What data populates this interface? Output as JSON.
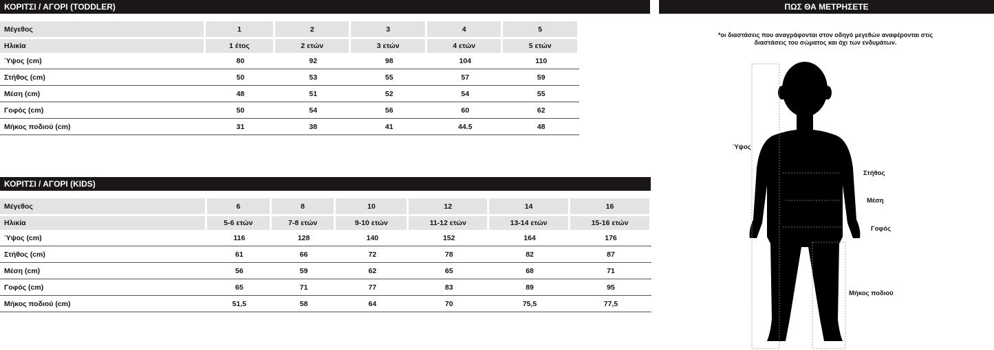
{
  "toddler": {
    "title": "ΚΟΡΙΤΣΙ / ΑΓΟΡΙ (TODDLER)",
    "rows": [
      {
        "label": "Μέγεθος",
        "values": [
          "1",
          "2",
          "3",
          "4",
          "5"
        ]
      },
      {
        "label": "Ηλικία",
        "values": [
          "1 έτος",
          "2 ετών",
          "3 ετών",
          "4 ετών",
          "5 ετών"
        ]
      },
      {
        "label": "Ύψος (cm)",
        "values": [
          "80",
          "92",
          "98",
          "104",
          "110"
        ]
      },
      {
        "label": "Στήθος (cm)",
        "values": [
          "50",
          "53",
          "55",
          "57",
          "59"
        ]
      },
      {
        "label": "Μέση (cm)",
        "values": [
          "48",
          "51",
          "52",
          "54",
          "55"
        ]
      },
      {
        "label": "Γοφός (cm)",
        "values": [
          "50",
          "54",
          "56",
          "60",
          "62"
        ]
      },
      {
        "label": "Μήκος ποδιού (cm)",
        "values": [
          "31",
          "38",
          "41",
          "44.5",
          "48"
        ]
      }
    ]
  },
  "kids": {
    "title": "ΚΟΡΙΤΣΙ / ΑΓΟΡΙ (KIDS)",
    "rows": [
      {
        "label": "Μέγεθος",
        "values": [
          "6",
          "8",
          "10",
          "12",
          "14",
          "16"
        ]
      },
      {
        "label": "Ηλικία",
        "values": [
          "5-6 ετών",
          "7-8 ετών",
          "9-10 ετών",
          "11-12 ετών",
          "13-14 ετών",
          "15-16 ετών"
        ]
      },
      {
        "label": "Ύψος (cm)",
        "values": [
          "116",
          "128",
          "140",
          "152",
          "164",
          "176"
        ]
      },
      {
        "label": "Στήθος (cm)",
        "values": [
          "61",
          "66",
          "72",
          "78",
          "82",
          "87"
        ]
      },
      {
        "label": "Μέση (cm)",
        "values": [
          "56",
          "59",
          "62",
          "65",
          "68",
          "71"
        ]
      },
      {
        "label": "Γοφός (cm)",
        "values": [
          "65",
          "71",
          "77",
          "83",
          "89",
          "95"
        ]
      },
      {
        "label": "Μήκος ποδιού (cm)",
        "values": [
          "51,5",
          "58",
          "64",
          "70",
          "75,5",
          "77,5"
        ]
      }
    ]
  },
  "measure": {
    "title": "ΠΩΣ ΘΑ ΜΕΤΡΗΣΕΤΕ",
    "note_line1": "*οι διαστάσεις που αναγράφονται στον οδηγό μεγεθών αναφέρονται στις",
    "note_line2": "διαστάσεις του σώματος και όχι των ενδυμάτων.",
    "labels": {
      "height": "Ύψος",
      "chest": "Στήθος",
      "waist": "Μέση",
      "hips": "Γοφός",
      "leg": "Μήκος ποδιού"
    }
  }
}
